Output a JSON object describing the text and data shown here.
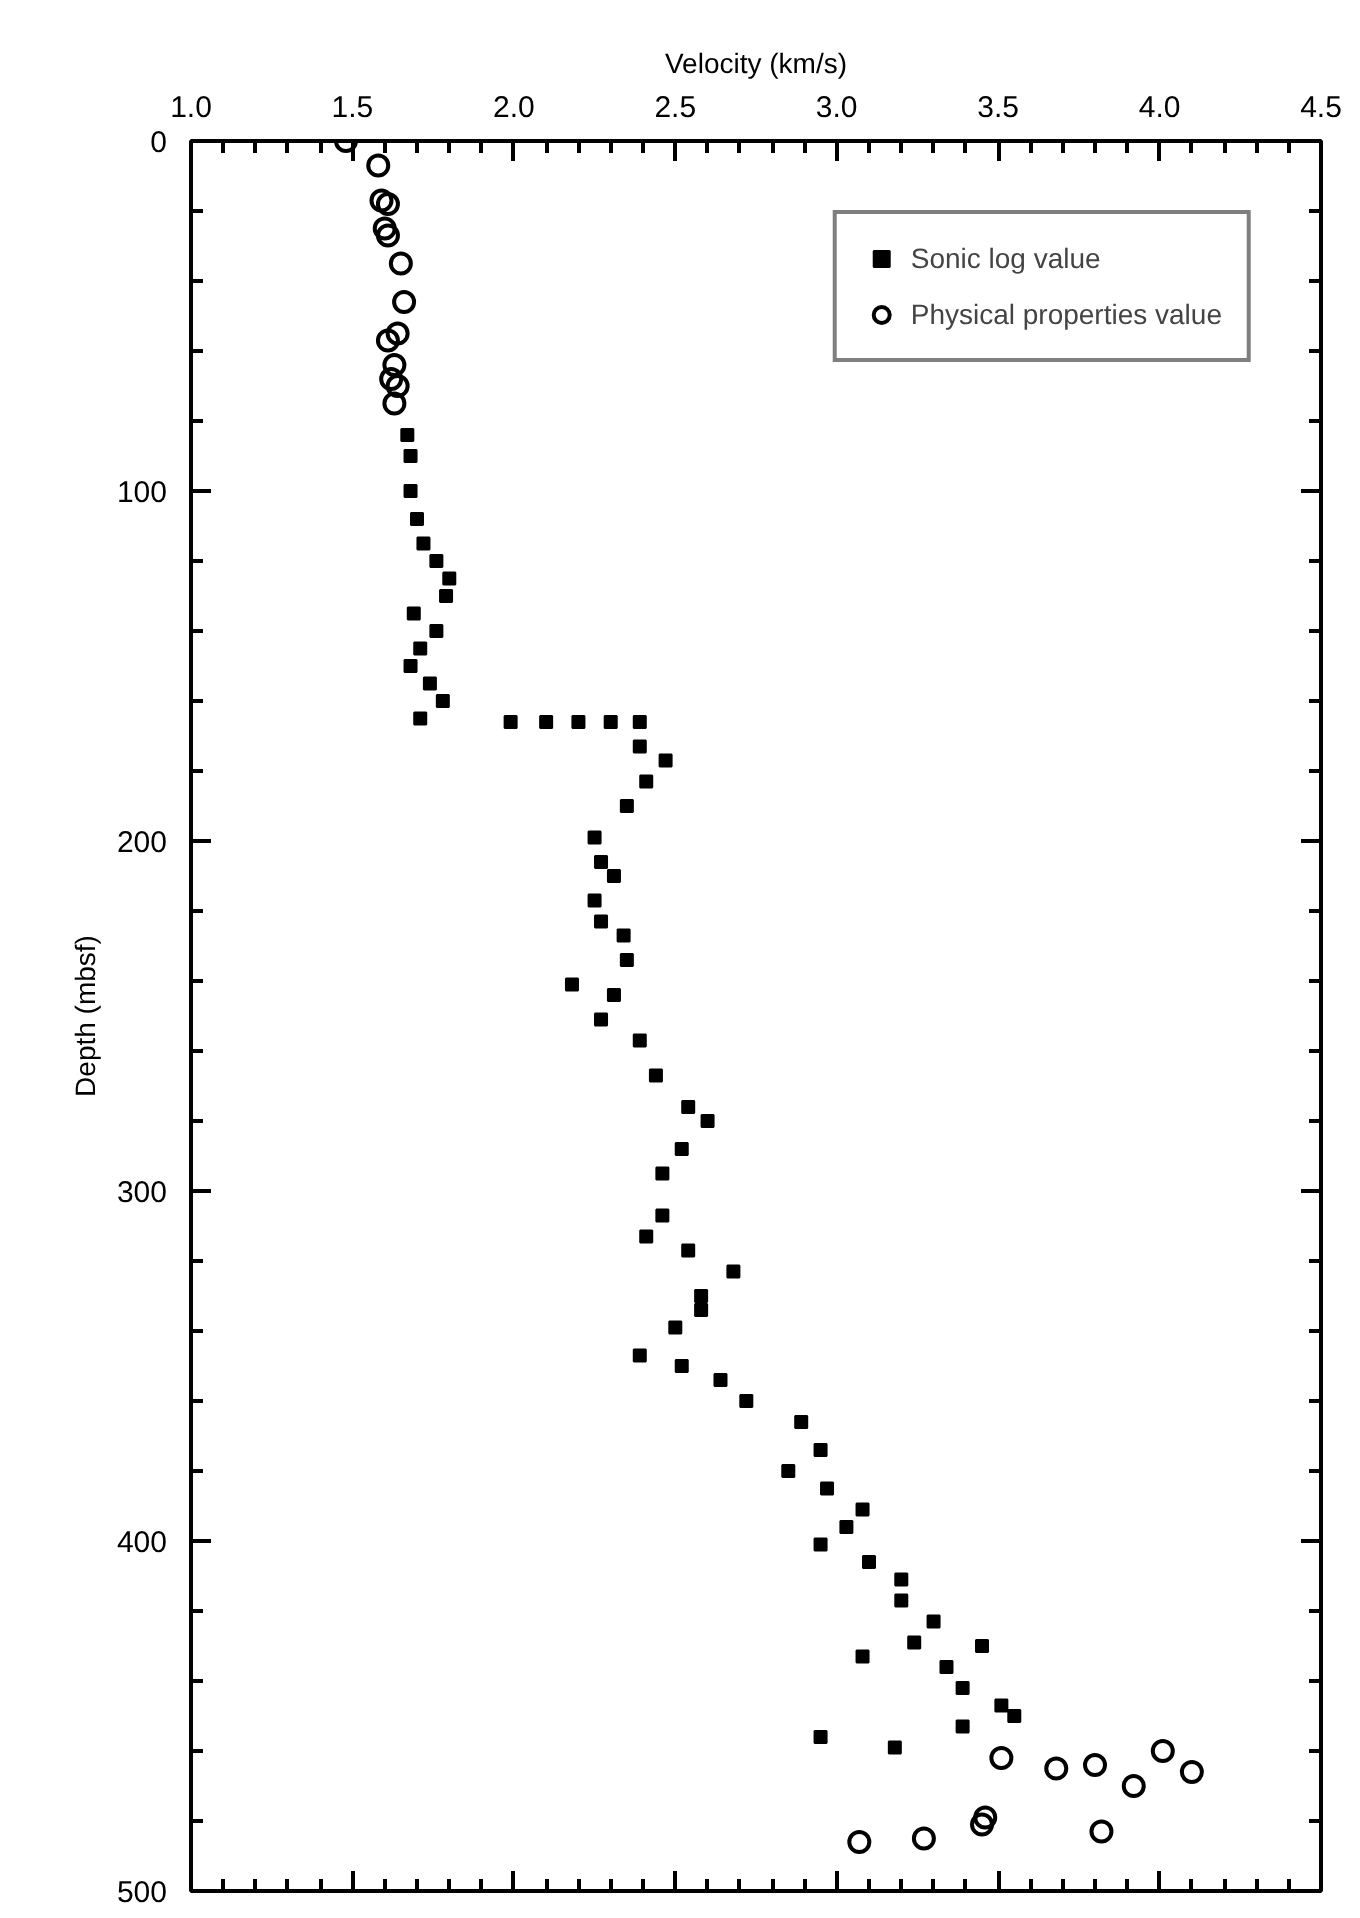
{
  "chart_data": {
    "type": "scatter",
    "xlabel": "Velocity (km/s)",
    "ylabel": "Depth (mbsf)",
    "xlim": [
      1.0,
      4.5
    ],
    "ylim": [
      500,
      0
    ],
    "xticks": [
      {
        "value": 1.0,
        "label": "1.0"
      },
      1.5,
      {
        "value": 2.0,
        "label": "2.0"
      },
      2.5,
      {
        "value": 3.0,
        "label": "3.0"
      },
      3.5,
      {
        "value": 4.0,
        "label": "4.0"
      },
      4.5
    ],
    "yticks": [
      0,
      100,
      200,
      300,
      400,
      500
    ],
    "grid": false,
    "legend": "top right",
    "series": [
      {
        "name": "Sonic log value",
        "color": "#000000",
        "marker": "square",
        "x": [
          1.67,
          1.68,
          1.68,
          1.7,
          1.72,
          1.76,
          1.8,
          1.79,
          1.69,
          1.76,
          1.71,
          1.68,
          1.74,
          1.78,
          1.71,
          1.99,
          2.1,
          2.2,
          2.3,
          2.39,
          2.39,
          2.47,
          2.41,
          2.35,
          2.25,
          2.27,
          2.31,
          2.25,
          2.27,
          2.34,
          2.35,
          2.18,
          2.31,
          2.27,
          2.39,
          2.44,
          2.54,
          2.6,
          2.52,
          2.46,
          2.46,
          2.41,
          2.54,
          2.68,
          2.58,
          2.58,
          2.5,
          2.39,
          2.52,
          2.64,
          2.72,
          2.89,
          2.95,
          2.85,
          2.97,
          3.08,
          3.03,
          2.95,
          3.1,
          3.2,
          3.2,
          3.3,
          3.24,
          3.08,
          3.45,
          3.34,
          3.39,
          3.51,
          3.55,
          3.39,
          2.95,
          3.18
        ],
        "values": [
          84,
          90,
          100,
          108,
          115,
          120,
          125,
          130,
          135,
          140,
          145,
          150,
          155,
          160,
          165,
          166,
          166,
          166,
          166,
          166,
          173,
          177,
          183,
          190,
          199,
          206,
          210,
          217,
          223,
          227,
          234,
          241,
          244,
          251,
          257,
          267,
          276,
          280,
          288,
          295,
          307,
          313,
          317,
          323,
          330,
          334,
          339,
          347,
          350,
          354,
          360,
          366,
          374,
          380,
          385,
          391,
          396,
          401,
          406,
          411,
          417,
          423,
          429,
          433,
          430,
          436,
          442,
          447,
          450,
          453,
          456,
          459
        ]
      },
      {
        "name": "Physical properties value",
        "color": "#000000",
        "marker": "circle",
        "x": [
          1.48,
          1.58,
          1.59,
          1.61,
          1.6,
          1.61,
          1.65,
          1.66,
          1.64,
          1.61,
          1.63,
          1.62,
          1.64,
          1.63,
          3.51,
          3.68,
          3.8,
          3.92,
          4.01,
          4.1,
          3.82,
          3.45,
          3.46,
          3.27,
          3.07
        ],
        "values": [
          0,
          7,
          17,
          18,
          25,
          27,
          35,
          46,
          55,
          57,
          64,
          68,
          70,
          75,
          462,
          465,
          464,
          470,
          460,
          466,
          483,
          481,
          479,
          485,
          486
        ]
      }
    ]
  }
}
